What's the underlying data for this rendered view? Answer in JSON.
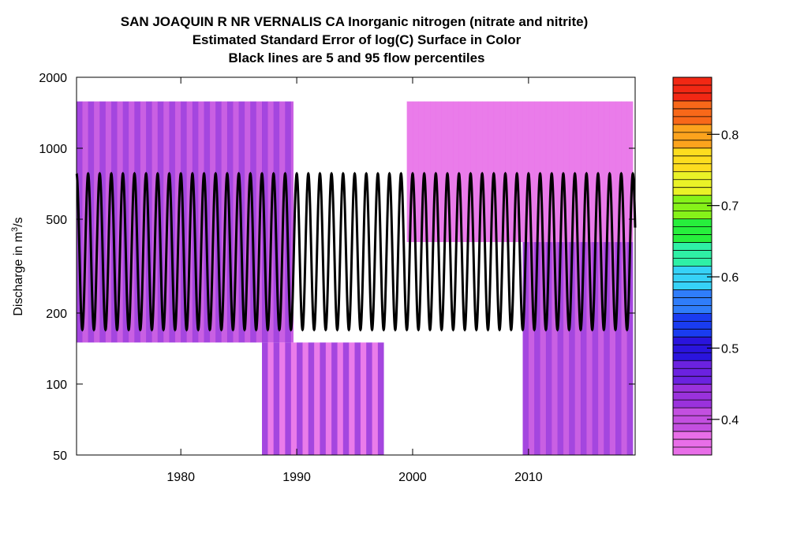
{
  "chart_data": {
    "type": "heatmap",
    "title_lines": [
      "SAN JOAQUIN R NR VERNALIS CA    Inorganic nitrogen (nitrate and nitrite)",
      "Estimated Standard Error of log(C) Surface in Color",
      "Black lines are 5 and 95 flow percentiles"
    ],
    "xlabel": "",
    "ylabel": "Discharge in m",
    "ylabel_sup": "3",
    "ylabel_suffix": "/s",
    "y_scale": "log",
    "xlim": [
      1971,
      2019.2
    ],
    "ylim": [
      50,
      2000
    ],
    "x_ticks": [
      1980,
      1990,
      2000,
      2010
    ],
    "y_ticks": [
      50,
      100,
      200,
      500,
      1000,
      2000
    ],
    "colorbar": {
      "range": [
        0.35,
        0.88
      ],
      "ticks": [
        0.4,
        0.5,
        0.6,
        0.7,
        0.8
      ],
      "colors": [
        "#e86ee8",
        "#c34fe0",
        "#9a32dc",
        "#6b22e0",
        "#2a14dd",
        "#1a3cf0",
        "#2f7dfa",
        "#36d2f7",
        "#2ff0a5",
        "#27ef3c",
        "#86f219",
        "#eaf227",
        "#fddd1f",
        "#fca31d",
        "#f86819",
        "#f22814"
      ]
    },
    "surface_regions": [
      {
        "x": [
          1971,
          1989.7
        ],
        "y": [
          150,
          1580
        ],
        "level": 0.44
      },
      {
        "x": [
          1999.5,
          2019
        ],
        "y": [
          400,
          1580
        ],
        "level": 0.38
      },
      {
        "x": [
          1987,
          1997.5
        ],
        "y": [
          50,
          150
        ],
        "level": 0.42
      },
      {
        "x": [
          2009.5,
          2019
        ],
        "y": [
          50,
          400
        ],
        "level": 0.44
      }
    ],
    "flow_percentile_lines": {
      "p5_min": 170,
      "p95_max": 780,
      "cycles_per_year": 1
    },
    "grid": false
  }
}
